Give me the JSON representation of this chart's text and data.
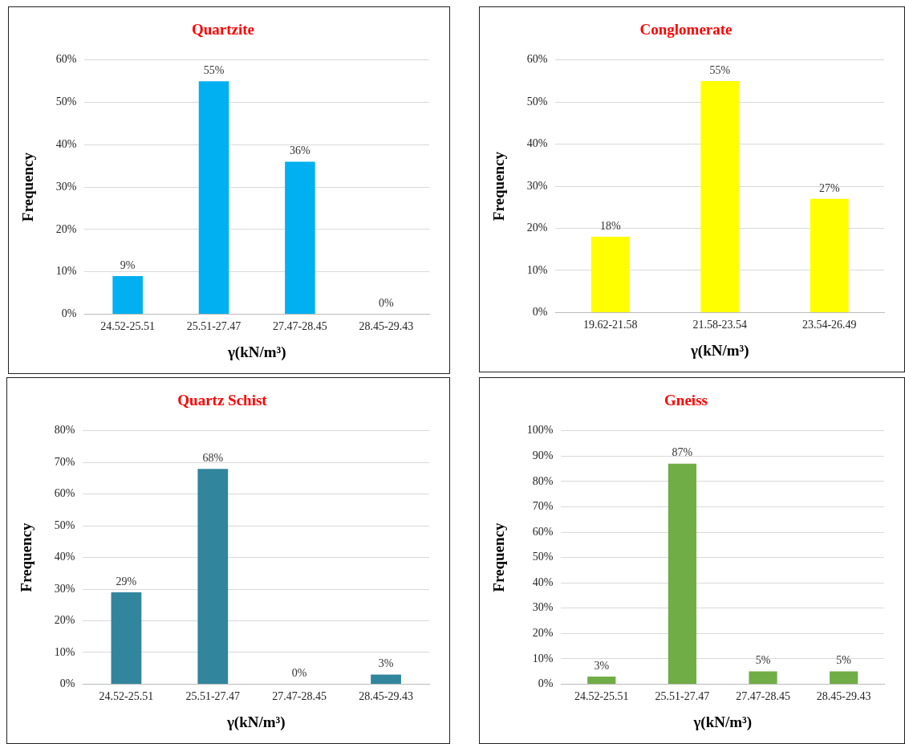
{
  "chart_data": [
    {
      "type": "bar",
      "title": "Quartzite",
      "xlabel": "γ(kN/m³)",
      "ylabel": "Frequency",
      "categories": [
        "24.52-25.51",
        "25.51-27.47",
        "27.47-28.45",
        "28.45-29.43"
      ],
      "values": [
        9,
        55,
        36,
        0
      ],
      "value_labels": [
        "9%",
        "55%",
        "36%",
        "0%"
      ],
      "color": "#00b0f0",
      "ylim": [
        0,
        60
      ],
      "yticks": [
        {
          "value": 0,
          "label": "0%"
        },
        {
          "value": 10,
          "label": "10%"
        },
        {
          "value": 20,
          "label": "20%"
        },
        {
          "value": 30,
          "label": "30%"
        },
        {
          "value": 40,
          "label": "40%"
        },
        {
          "value": 50,
          "label": "50%"
        },
        {
          "value": 60,
          "label": "60%"
        }
      ],
      "grid": "y"
    },
    {
      "type": "bar",
      "title": "Conglomerate",
      "xlabel": "γ(kN/m³)",
      "ylabel": "Frequency",
      "categories": [
        "19.62-21.58",
        "21.58-23.54",
        "23.54-26.49"
      ],
      "values": [
        18,
        55,
        27
      ],
      "value_labels": [
        "18%",
        "55%",
        "27%"
      ],
      "color": "#ffff00",
      "ylim": [
        0,
        60
      ],
      "yticks": [
        {
          "value": 0,
          "label": "0%"
        },
        {
          "value": 10,
          "label": "10%"
        },
        {
          "value": 20,
          "label": "20%"
        },
        {
          "value": 30,
          "label": "30%"
        },
        {
          "value": 40,
          "label": "40%"
        },
        {
          "value": 50,
          "label": "50%"
        },
        {
          "value": 60,
          "label": "60%"
        }
      ],
      "grid": "y"
    },
    {
      "type": "bar",
      "title": "Quartz Schist",
      "xlabel": "γ(kN/m³)",
      "ylabel": "Frequency",
      "categories": [
        "24.52-25.51",
        "25.51-27.47",
        "27.47-28.45",
        "28.45-29.43"
      ],
      "values": [
        29,
        68,
        0,
        3
      ],
      "value_labels": [
        "29%",
        "68%",
        "0%",
        "3%"
      ],
      "color": "#31859c",
      "ylim": [
        0,
        80
      ],
      "yticks": [
        {
          "value": 0,
          "label": "0%"
        },
        {
          "value": 10,
          "label": "10%"
        },
        {
          "value": 20,
          "label": "20%"
        },
        {
          "value": 30,
          "label": "30%"
        },
        {
          "value": 40,
          "label": "40%"
        },
        {
          "value": 50,
          "label": "50%"
        },
        {
          "value": 60,
          "label": "60%"
        },
        {
          "value": 70,
          "label": "70%"
        },
        {
          "value": 80,
          "label": "80%"
        }
      ],
      "grid": "y"
    },
    {
      "type": "bar",
      "title": "Gneiss",
      "xlabel": "γ(kN/m³)",
      "ylabel": "Frequency",
      "categories": [
        "24.52-25.51",
        "25.51-27.47",
        "27.47-28.45",
        "28.45-29.43"
      ],
      "values": [
        3,
        87,
        5,
        5
      ],
      "value_labels": [
        "3%",
        "87%",
        "5%",
        "5%"
      ],
      "color": "#70ad47",
      "ylim": [
        0,
        100
      ],
      "yticks": [
        {
          "value": 0,
          "label": "0%"
        },
        {
          "value": 10,
          "label": "10%"
        },
        {
          "value": 20,
          "label": "20%"
        },
        {
          "value": 30,
          "label": "30%"
        },
        {
          "value": 40,
          "label": "40%"
        },
        {
          "value": 50,
          "label": "50%"
        },
        {
          "value": 60,
          "label": "60%"
        },
        {
          "value": 70,
          "label": "70%"
        },
        {
          "value": 80,
          "label": "80%"
        },
        {
          "value": 90,
          "label": "90%"
        },
        {
          "value": 100,
          "label": "100%"
        }
      ],
      "grid": "y"
    }
  ]
}
